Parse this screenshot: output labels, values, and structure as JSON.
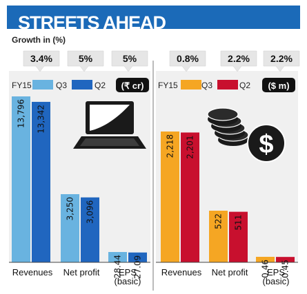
{
  "title": "STREETS AHEAD",
  "growth_label": "Growth in (%)",
  "chart_data": [
    {
      "type": "bar",
      "categories": [
        "Revenues",
        "Net profit",
        "EPS (basic)"
      ],
      "category_lines": [
        [
          "Revenues"
        ],
        [
          "Net profit"
        ],
        [
          "EPS",
          "(basic)"
        ]
      ],
      "series": [
        {
          "name": "Q3",
          "values": [
            13796,
            3250,
            28.44
          ],
          "labels": [
            "13,796",
            "3,250",
            "28.44"
          ],
          "color": "#69b3e0"
        },
        {
          "name": "Q2",
          "values": [
            13342,
            3096,
            27.09
          ],
          "labels": [
            "13,342",
            "3,096",
            "27.09"
          ],
          "color": "#2066bf"
        }
      ],
      "growth": [
        "3.4%",
        "5%",
        "5%"
      ],
      "legend_prefix": "FY15",
      "unit": "(₹ cr)",
      "icon": "laptop-icon"
    },
    {
      "type": "bar",
      "categories": [
        "Revenues",
        "Net profit",
        "EPS (basic)"
      ],
      "category_lines": [
        [
          "Revenues"
        ],
        [
          "Net profit"
        ],
        [
          "EPS",
          "(basic)"
        ]
      ],
      "series": [
        {
          "name": "Q3",
          "values": [
            2218,
            522,
            0.46
          ],
          "labels": [
            "2,218",
            "522",
            "0.46"
          ],
          "color": "#f5a623"
        },
        {
          "name": "Q2",
          "values": [
            2201,
            511,
            0.45
          ],
          "labels": [
            "2,201",
            "511",
            "0.45"
          ],
          "color": "#c8102e"
        }
      ],
      "growth": [
        "0.8%",
        "2.2%",
        "2.2%"
      ],
      "legend_prefix": "FY15",
      "unit": "($ m)",
      "icon": "dollar-coins-icon"
    }
  ],
  "colors": {
    "title_bar": "#1b6ab8",
    "growth_box": "#e6e6e6",
    "panel_bg": "#f0f0f0"
  }
}
